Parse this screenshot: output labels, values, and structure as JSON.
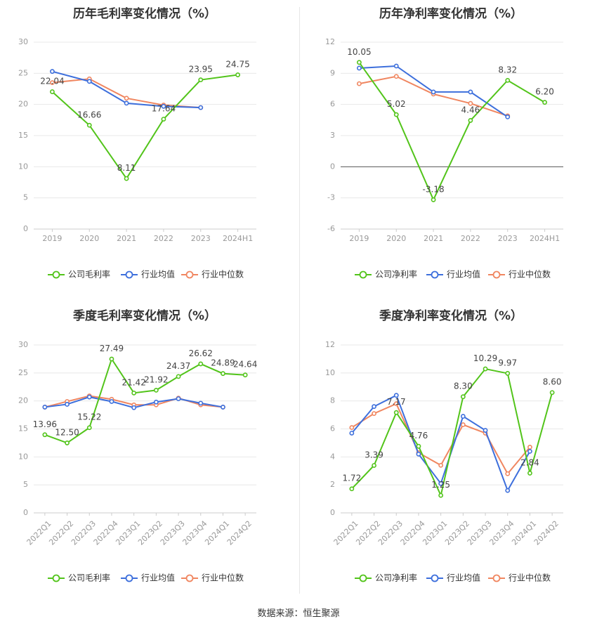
{
  "source": "数据来源：恒生聚源",
  "colors": {
    "company": "#52c41a",
    "avg": "#3d6fdc",
    "median": "#f08660",
    "axis": "#999999",
    "grid": "#e8e8e8",
    "label": "#444444"
  },
  "chart_data": [
    {
      "type": "line",
      "title": "历年毛利率变化情况（%）",
      "categories": [
        "2019",
        "2020",
        "2021",
        "2022",
        "2023",
        "2024H1"
      ],
      "ylim": [
        0,
        30
      ],
      "yticks": [
        0,
        5,
        10,
        15,
        20,
        25,
        30
      ],
      "grid": true,
      "legend_position": "bottom",
      "series": [
        {
          "name": "公司毛利率",
          "role": "company",
          "values": [
            22.04,
            16.66,
            8.11,
            17.64,
            23.95,
            24.75
          ]
        },
        {
          "name": "行业均值",
          "role": "avg",
          "values": [
            25.3,
            23.7,
            20.2,
            19.7,
            19.5,
            null
          ]
        },
        {
          "name": "行业中位数",
          "role": "median",
          "values": [
            23.5,
            24.1,
            21.0,
            19.9,
            19.5,
            null
          ]
        }
      ]
    },
    {
      "type": "line",
      "title": "历年净利率变化情况（%）",
      "categories": [
        "2019",
        "2020",
        "2021",
        "2022",
        "2023",
        "2024H1"
      ],
      "ylim": [
        -6,
        12
      ],
      "yticks": [
        -6,
        -3,
        0,
        3,
        6,
        9,
        12
      ],
      "grid": true,
      "legend_position": "bottom",
      "series": [
        {
          "name": "公司净利率",
          "role": "company",
          "values": [
            10.05,
            5.02,
            -3.18,
            4.46,
            8.32,
            6.2
          ]
        },
        {
          "name": "行业均值",
          "role": "avg",
          "values": [
            9.5,
            9.7,
            7.2,
            7.2,
            4.8,
            null
          ]
        },
        {
          "name": "行业中位数",
          "role": "median",
          "values": [
            8.0,
            8.7,
            7.0,
            6.1,
            4.9,
            null
          ]
        }
      ]
    },
    {
      "type": "line",
      "title": "季度毛利率变化情况（%）",
      "categories": [
        "2022Q1",
        "2022Q2",
        "2022Q3",
        "2022Q4",
        "2023Q1",
        "2023Q2",
        "2023Q3",
        "2023Q4",
        "2024Q1",
        "2024Q2"
      ],
      "ylim": [
        0,
        30
      ],
      "yticks": [
        0,
        5,
        10,
        15,
        20,
        25,
        30
      ],
      "grid": true,
      "legend_position": "bottom",
      "series": [
        {
          "name": "公司毛利率",
          "role": "company",
          "values": [
            13.96,
            12.5,
            15.22,
            27.49,
            21.42,
            21.92,
            24.37,
            26.62,
            24.89,
            24.64
          ]
        },
        {
          "name": "行业均值",
          "role": "avg",
          "values": [
            18.9,
            19.4,
            20.7,
            19.9,
            18.8,
            19.8,
            20.4,
            19.6,
            18.9,
            null
          ]
        },
        {
          "name": "行业中位数",
          "role": "median",
          "values": [
            18.9,
            19.9,
            20.9,
            20.3,
            19.3,
            19.3,
            20.5,
            19.3,
            18.9,
            null
          ]
        }
      ]
    },
    {
      "type": "line",
      "title": "季度净利率变化情况（%）",
      "categories": [
        "2022Q1",
        "2022Q2",
        "2022Q3",
        "2022Q4",
        "2023Q1",
        "2023Q2",
        "2023Q3",
        "2023Q4",
        "2024Q1",
        "2024Q2"
      ],
      "ylim": [
        0,
        12
      ],
      "yticks": [
        0,
        2,
        4,
        6,
        8,
        10,
        12
      ],
      "grid": true,
      "legend_position": "bottom",
      "series": [
        {
          "name": "公司净利率",
          "role": "company",
          "values": [
            1.72,
            3.39,
            7.17,
            4.76,
            1.25,
            8.3,
            10.29,
            9.97,
            2.84,
            8.6
          ]
        },
        {
          "name": "行业均值",
          "role": "avg",
          "values": [
            5.7,
            7.6,
            8.4,
            4.2,
            2.1,
            6.9,
            5.9,
            1.6,
            4.4,
            null
          ]
        },
        {
          "name": "行业中位数",
          "role": "median",
          "values": [
            6.1,
            7.1,
            7.8,
            4.3,
            3.4,
            6.3,
            5.7,
            2.8,
            4.7,
            null
          ]
        }
      ]
    }
  ]
}
